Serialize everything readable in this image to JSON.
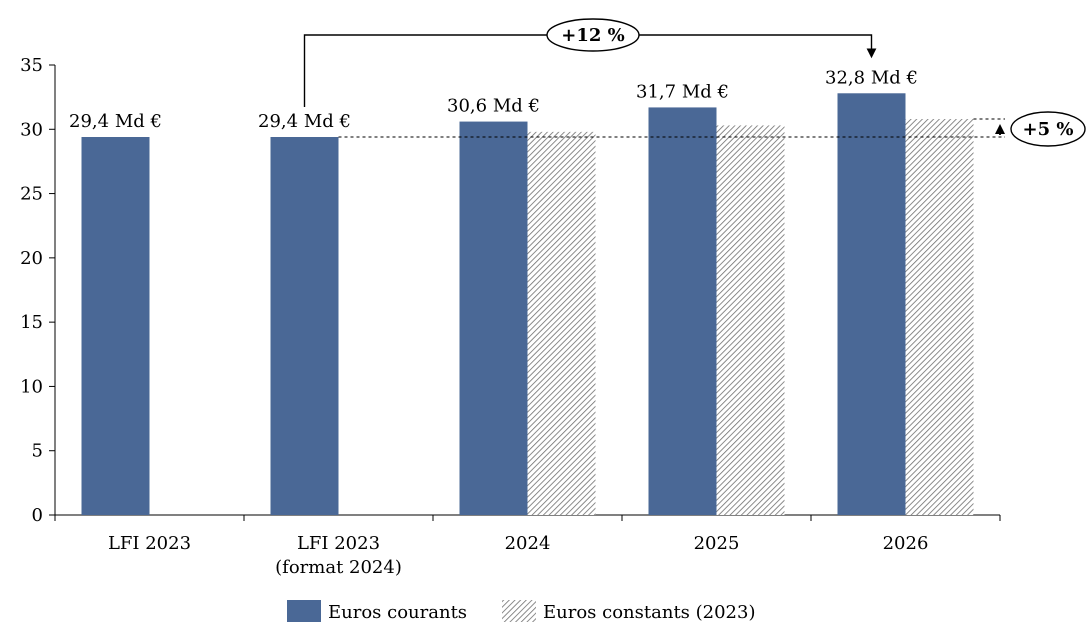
{
  "chart_data": {
    "type": "bar",
    "categories": [
      [
        "LFI 2023"
      ],
      [
        "LFI 2023",
        "(format 2024)"
      ],
      [
        "2024"
      ],
      [
        "2025"
      ],
      [
        "2026"
      ]
    ],
    "series": [
      {
        "name": "Euros courants",
        "values": [
          29.4,
          29.4,
          30.6,
          31.7,
          32.8
        ],
        "color": "#4a6896",
        "pattern": "solid"
      },
      {
        "name": "Euros constants (2023)",
        "values": [
          null,
          null,
          29.8,
          30.3,
          30.8
        ],
        "color": "#9a9a9a",
        "pattern": "hatched"
      }
    ],
    "data_labels": [
      "29,4 Md €",
      "29,4 Md €",
      "30,6 Md €",
      "31,7 Md €",
      "32,8 Md €"
    ],
    "y_ticks": [
      "0",
      "5",
      "10",
      "15",
      "20",
      "25",
      "30",
      "35"
    ],
    "ylim": [
      0,
      35
    ],
    "legend": {
      "position": "bottom"
    },
    "annotations": [
      {
        "text": "+12 %",
        "from_category": 1,
        "to_category": 4,
        "kind": "bracket-arrow"
      },
      {
        "text": "+5 %",
        "from_value": 29.4,
        "to_value": 30.8,
        "kind": "vertical-arrow"
      }
    ],
    "reference_line": {
      "value": 29.4,
      "style": "dashed"
    },
    "grid": false,
    "title": "",
    "xlabel": "",
    "ylabel": ""
  }
}
